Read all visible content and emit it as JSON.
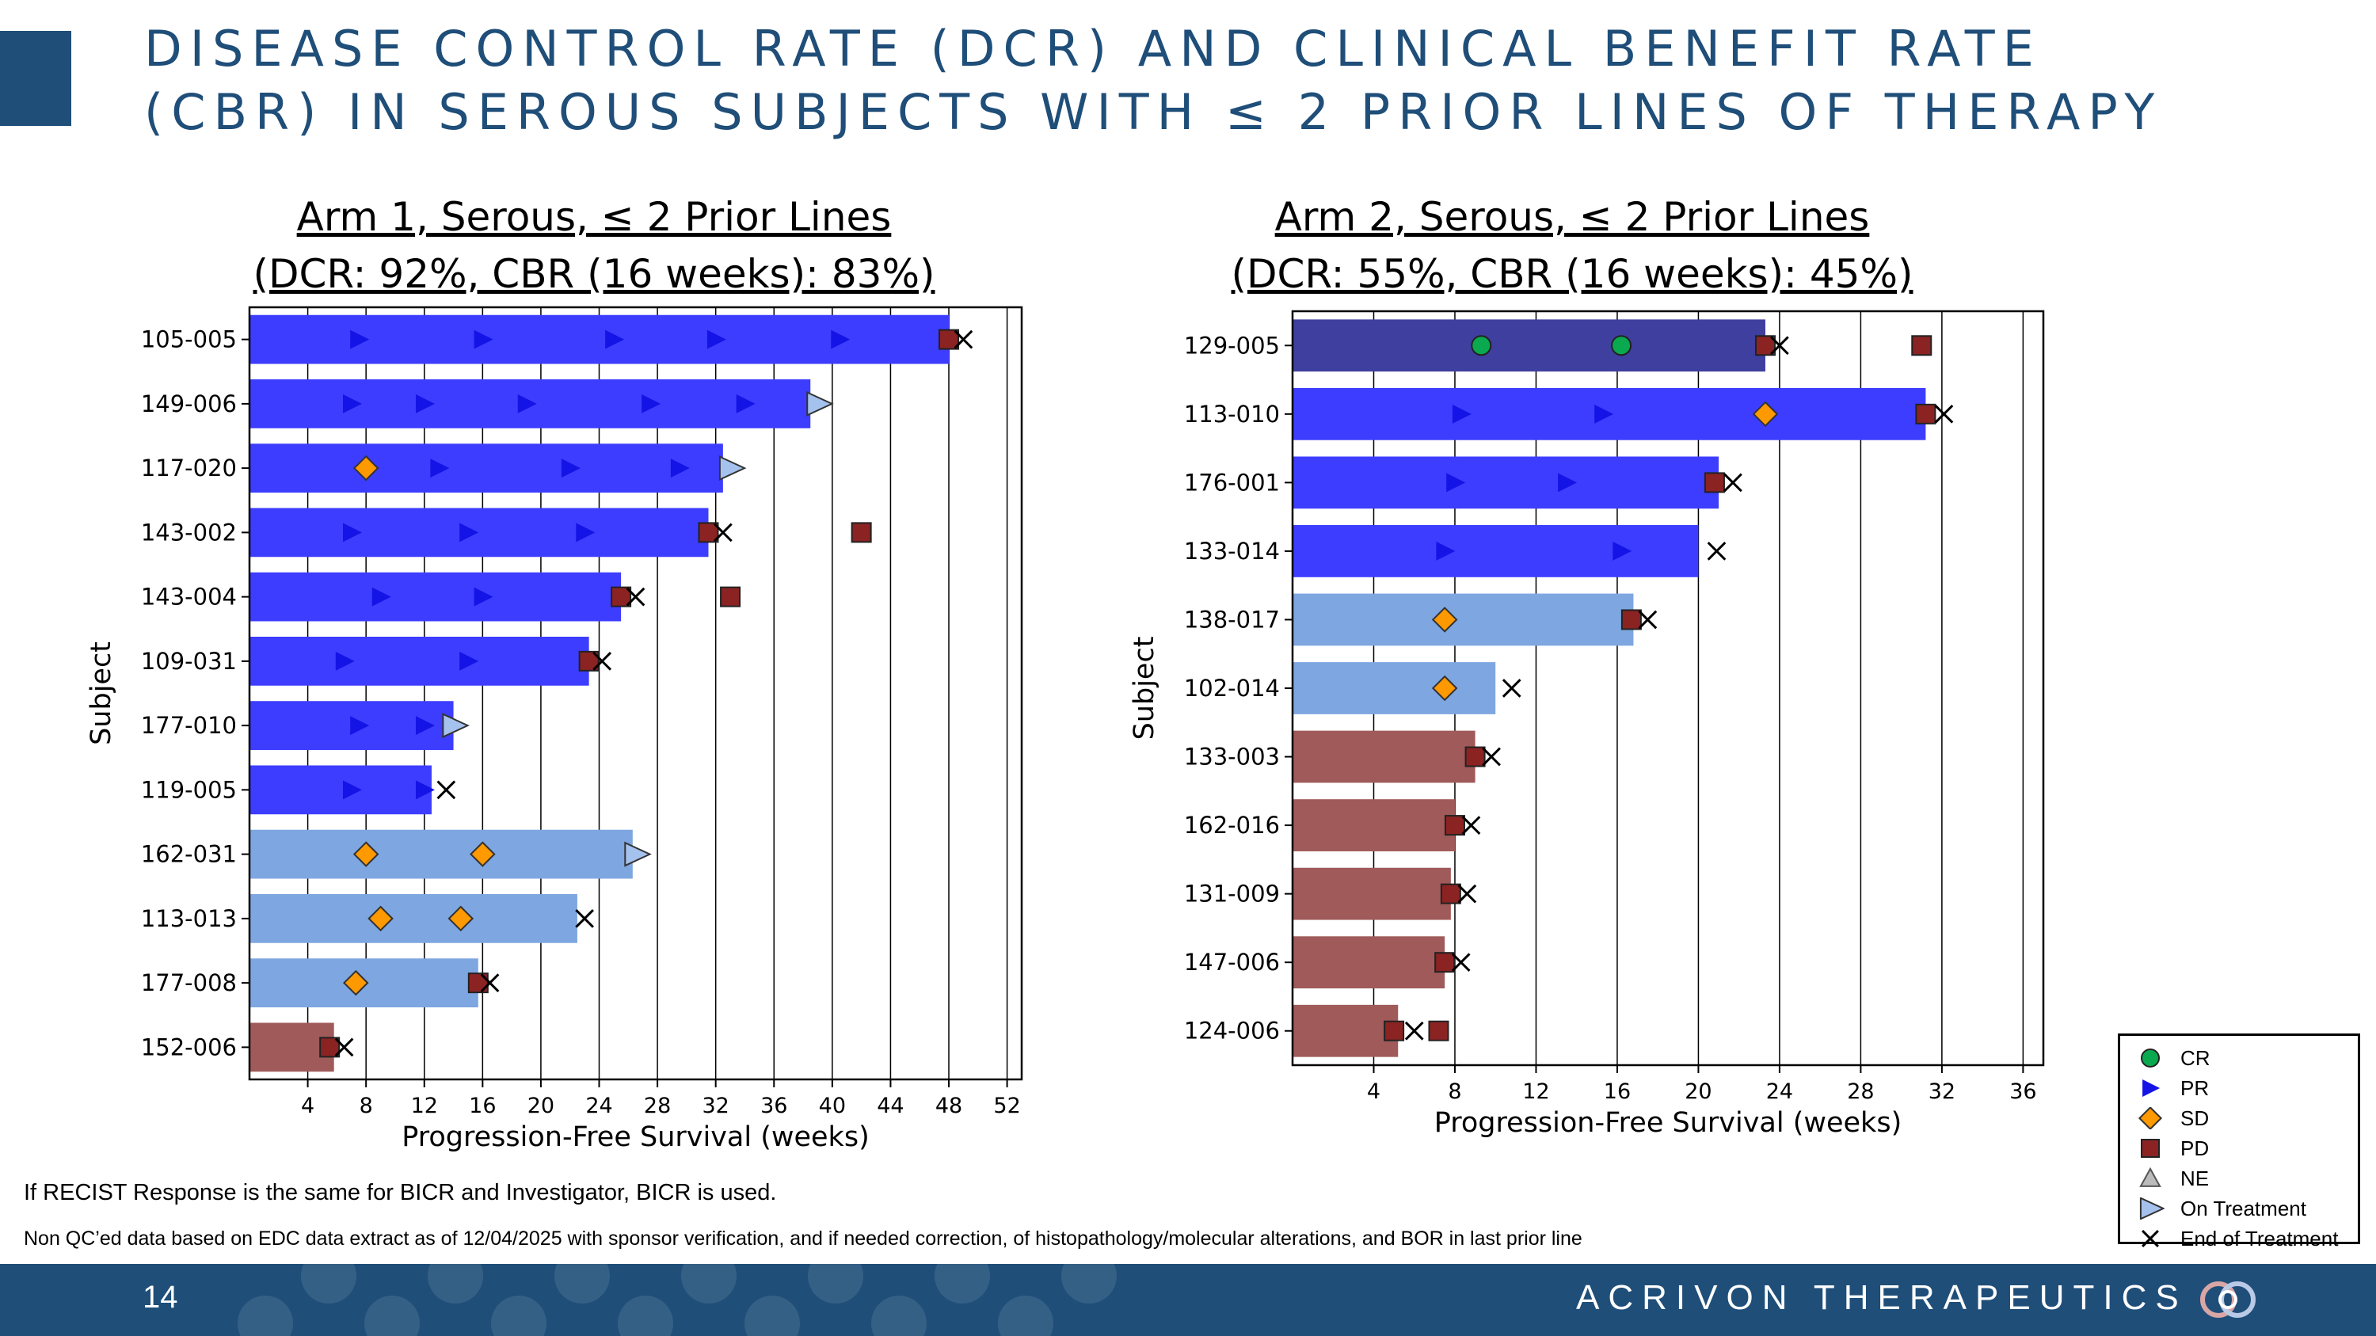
{
  "slide": {
    "title_line1": "DISEASE CONTROL RATE (DCR) AND CLINICAL BENEFIT RATE",
    "title_line2": "(CBR) IN SEROUS SUBJECTS WITH ≤ 2 PRIOR LINES OF THERAPY",
    "page_number": "14",
    "company": "ACRIVON THERAPEUTICS",
    "footnote1": "If RECIST Response is the same for BICR and Investigator, BICR is used.",
    "footnote2": "Non QC’ed data based on EDC data extract as of 12/04/2025 with sponsor verification, and if needed correction, of histopathology/molecular alterations, and BOR in last prior line"
  },
  "colors": {
    "title": "#1f4e79",
    "footer": "#1f4e79",
    "pr_bar": "#3d3dff",
    "cr_bar": "#3f3f9f",
    "sd_bar": "#7ea6e0",
    "pd_bar": "#a05a5a",
    "cr": "#0aa84f",
    "pr": "#1414e6",
    "sd": "#ff9900",
    "pd": "#8b2323",
    "ne": "#bbbbbb",
    "on_treatment": "#a5c2ee",
    "end": "#000000"
  },
  "legend": [
    {
      "key": "cr",
      "label": "CR"
    },
    {
      "key": "pr",
      "label": "PR"
    },
    {
      "key": "sd",
      "label": "SD"
    },
    {
      "key": "pd",
      "label": "PD"
    },
    {
      "key": "ne",
      "label": "NE"
    },
    {
      "key": "on",
      "label": "On Treatment"
    },
    {
      "key": "end",
      "label": "End of Treatment"
    }
  ],
  "chart_data": [
    {
      "type": "bar",
      "orientation": "horizontal",
      "title_line1": "Arm 1, Serous, ≤ 2 Prior Lines",
      "title_line2": "(DCR: 92%, CBR (16 weeks): 83%)",
      "xlabel": "Progression-Free Survival (weeks)",
      "ylabel": "Subject",
      "xlim": [
        0,
        53
      ],
      "xticks": [
        4,
        8,
        12,
        16,
        20,
        24,
        28,
        32,
        36,
        40,
        44,
        48,
        52
      ],
      "grid": "vertical",
      "subjects": [
        {
          "id": "105-005",
          "pfs": 48,
          "bor": "PR",
          "markers": [
            {
              "t": "pr",
              "x": 7.5
            },
            {
              "t": "pr",
              "x": 16
            },
            {
              "t": "pr",
              "x": 25
            },
            {
              "t": "pr",
              "x": 32
            },
            {
              "t": "pr",
              "x": 40.5
            },
            {
              "t": "pd",
              "x": 48
            },
            {
              "t": "end",
              "x": 49
            }
          ]
        },
        {
          "id": "149-006",
          "pfs": 38.5,
          "bor": "PR",
          "markers": [
            {
              "t": "pr",
              "x": 7
            },
            {
              "t": "pr",
              "x": 12
            },
            {
              "t": "pr",
              "x": 19
            },
            {
              "t": "pr",
              "x": 27.5
            },
            {
              "t": "pr",
              "x": 34
            },
            {
              "t": "on",
              "x": 39
            }
          ]
        },
        {
          "id": "117-020",
          "pfs": 32.5,
          "bor": "PR",
          "markers": [
            {
              "t": "sd",
              "x": 8
            },
            {
              "t": "pr",
              "x": 13
            },
            {
              "t": "pr",
              "x": 22
            },
            {
              "t": "pr",
              "x": 29.5
            },
            {
              "t": "on",
              "x": 33
            }
          ]
        },
        {
          "id": "143-002",
          "pfs": 31.5,
          "bor": "PR",
          "markers": [
            {
              "t": "pr",
              "x": 7
            },
            {
              "t": "pr",
              "x": 15
            },
            {
              "t": "pr",
              "x": 23
            },
            {
              "t": "pd",
              "x": 31.5
            },
            {
              "t": "end",
              "x": 32.5
            },
            {
              "t": "pd",
              "x": 42
            }
          ]
        },
        {
          "id": "143-004",
          "pfs": 25.5,
          "bor": "PR",
          "markers": [
            {
              "t": "pr",
              "x": 9
            },
            {
              "t": "pr",
              "x": 16
            },
            {
              "t": "pd",
              "x": 25.5
            },
            {
              "t": "end",
              "x": 26.5
            },
            {
              "t": "pd",
              "x": 33
            }
          ]
        },
        {
          "id": "109-031",
          "pfs": 23.3,
          "bor": "PR",
          "markers": [
            {
              "t": "pr",
              "x": 6.5
            },
            {
              "t": "pr",
              "x": 15
            },
            {
              "t": "pd",
              "x": 23.3
            },
            {
              "t": "end",
              "x": 24.2
            }
          ]
        },
        {
          "id": "177-010",
          "pfs": 14,
          "bor": "PR",
          "markers": [
            {
              "t": "pr",
              "x": 7.5
            },
            {
              "t": "pr",
              "x": 12
            },
            {
              "t": "on",
              "x": 14
            }
          ]
        },
        {
          "id": "119-005",
          "pfs": 12.5,
          "bor": "PR",
          "markers": [
            {
              "t": "pr",
              "x": 7
            },
            {
              "t": "pr",
              "x": 12
            },
            {
              "t": "end",
              "x": 13.5
            }
          ]
        },
        {
          "id": "162-031",
          "pfs": 26.3,
          "bor": "SD",
          "markers": [
            {
              "t": "sd",
              "x": 8
            },
            {
              "t": "sd",
              "x": 16
            },
            {
              "t": "on",
              "x": 26.5
            }
          ]
        },
        {
          "id": "113-013",
          "pfs": 22.5,
          "bor": "SD",
          "markers": [
            {
              "t": "sd",
              "x": 9
            },
            {
              "t": "sd",
              "x": 14.5
            },
            {
              "t": "end",
              "x": 23
            }
          ]
        },
        {
          "id": "177-008",
          "pfs": 15.7,
          "bor": "SD",
          "markers": [
            {
              "t": "sd",
              "x": 7.3
            },
            {
              "t": "pd",
              "x": 15.7
            },
            {
              "t": "end",
              "x": 16.5
            }
          ]
        },
        {
          "id": "152-006",
          "pfs": 5.8,
          "bor": "PD",
          "markers": [
            {
              "t": "pd",
              "x": 5.5
            },
            {
              "t": "end",
              "x": 6.5
            }
          ]
        }
      ]
    },
    {
      "type": "bar",
      "orientation": "horizontal",
      "title_line1": "Arm 2, Serous, ≤ 2 Prior Lines",
      "title_line2": "(DCR: 55%, CBR (16 weeks): 45%)",
      "xlabel": "Progression-Free Survival (weeks)",
      "ylabel": "Subject",
      "xlim": [
        0,
        37
      ],
      "xticks": [
        4,
        8,
        12,
        16,
        20,
        24,
        28,
        32,
        36
      ],
      "grid": "vertical",
      "subjects": [
        {
          "id": "129-005",
          "pfs": 23.3,
          "bor": "CR",
          "markers": [
            {
              "t": "cr",
              "x": 9.3
            },
            {
              "t": "cr",
              "x": 16.2
            },
            {
              "t": "pd",
              "x": 23.3
            },
            {
              "t": "end",
              "x": 24
            },
            {
              "t": "pd",
              "x": 31
            }
          ]
        },
        {
          "id": "113-010",
          "pfs": 31.2,
          "bor": "PR",
          "markers": [
            {
              "t": "pr",
              "x": 8.3
            },
            {
              "t": "pr",
              "x": 15.3
            },
            {
              "t": "sd",
              "x": 23.3
            },
            {
              "t": "pd",
              "x": 31.2
            },
            {
              "t": "end",
              "x": 32.1
            }
          ]
        },
        {
          "id": "176-001",
          "pfs": 21,
          "bor": "PR",
          "markers": [
            {
              "t": "pr",
              "x": 8
            },
            {
              "t": "pr",
              "x": 13.5
            },
            {
              "t": "pd",
              "x": 20.8
            },
            {
              "t": "end",
              "x": 21.7
            }
          ]
        },
        {
          "id": "133-014",
          "pfs": 20,
          "bor": "PR",
          "markers": [
            {
              "t": "pr",
              "x": 7.5
            },
            {
              "t": "pr",
              "x": 16.2
            },
            {
              "t": "end",
              "x": 20.9
            }
          ]
        },
        {
          "id": "138-017",
          "pfs": 16.8,
          "bor": "SD",
          "markers": [
            {
              "t": "sd",
              "x": 7.5
            },
            {
              "t": "pd",
              "x": 16.7
            },
            {
              "t": "end",
              "x": 17.5
            }
          ]
        },
        {
          "id": "102-014",
          "pfs": 10,
          "bor": "SD",
          "markers": [
            {
              "t": "sd",
              "x": 7.5
            },
            {
              "t": "end",
              "x": 10.8
            }
          ]
        },
        {
          "id": "133-003",
          "pfs": 9,
          "bor": "PD",
          "markers": [
            {
              "t": "pd",
              "x": 9
            },
            {
              "t": "end",
              "x": 9.8
            }
          ]
        },
        {
          "id": "162-016",
          "pfs": 8,
          "bor": "PD",
          "markers": [
            {
              "t": "pd",
              "x": 8
            },
            {
              "t": "end",
              "x": 8.8
            }
          ]
        },
        {
          "id": "131-009",
          "pfs": 7.8,
          "bor": "PD",
          "markers": [
            {
              "t": "pd",
              "x": 7.8
            },
            {
              "t": "end",
              "x": 8.6
            }
          ]
        },
        {
          "id": "147-006",
          "pfs": 7.5,
          "bor": "PD",
          "markers": [
            {
              "t": "pd",
              "x": 7.5
            },
            {
              "t": "end",
              "x": 8.3
            }
          ]
        },
        {
          "id": "124-006",
          "pfs": 5.2,
          "bor": "PD",
          "markers": [
            {
              "t": "pd",
              "x": 5
            },
            {
              "t": "end",
              "x": 6
            },
            {
              "t": "pd",
              "x": 7.2
            }
          ]
        }
      ]
    }
  ]
}
